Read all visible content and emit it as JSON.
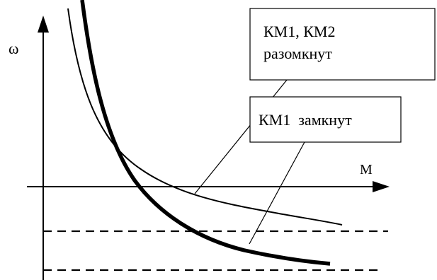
{
  "axes": {
    "y_label": "ω",
    "x_label": "M"
  },
  "callouts": {
    "open_line1": "КМ1, КМ2",
    "open_line2": "разомкнут",
    "closed": "КМ1  замкнут"
  },
  "colors": {
    "ink": "#000000",
    "background": "#ffffff"
  }
}
